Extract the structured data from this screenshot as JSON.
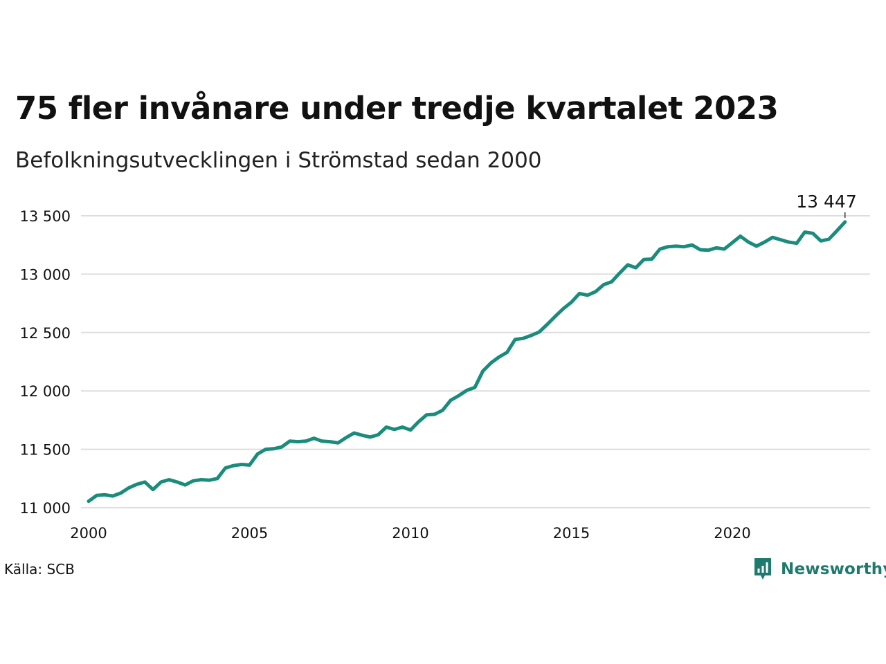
{
  "header": {
    "title": "75 fler invånare under tredje kvartalet 2023",
    "subtitle": "Befolkningsutvecklingen i Strömstad sedan 2000"
  },
  "footer": {
    "source": "Källa: SCB",
    "brand": "Newsworthy"
  },
  "colors": {
    "line": "#1a8c7c",
    "grid": "#dddddd",
    "brand": "#1f7a6e"
  },
  "icons": {
    "brand_logo": "bar-chart-speech-bubble-icon"
  },
  "chart_data": {
    "type": "line",
    "title": "75 fler invånare under tredje kvartalet 2023",
    "subtitle": "Befolkningsutvecklingen i Strömstad sedan 2000",
    "xlabel": "",
    "ylabel": "",
    "xlim": [
      2000,
      2024.5
    ],
    "ylim": [
      11000,
      13500
    ],
    "x_ticks": [
      2000,
      2005,
      2010,
      2015,
      2020
    ],
    "x_tick_labels": [
      "2000",
      "2005",
      "2010",
      "2015",
      "2020"
    ],
    "y_ticks": [
      11000,
      11500,
      12000,
      12500,
      13000,
      13500
    ],
    "y_tick_labels": [
      "11 000",
      "11 500",
      "12 000",
      "12 500",
      "13 000",
      "13 500"
    ],
    "grid": true,
    "annotation": {
      "x": 2023.5,
      "y": 13447,
      "label": "13 447"
    },
    "series": [
      {
        "x": [
          2000.0,
          2000.25,
          2000.5,
          2000.75,
          2001.0,
          2001.25,
          2001.5,
          2001.75,
          2002.0,
          2002.25,
          2002.5,
          2002.75,
          2003.0,
          2003.25,
          2003.5,
          2003.75,
          2004.0,
          2004.25,
          2004.5,
          2004.75,
          2005.0,
          2005.25,
          2005.5,
          2005.75,
          2006.0,
          2006.25,
          2006.5,
          2006.75,
          2007.0,
          2007.25,
          2007.5,
          2007.75,
          2008.0,
          2008.25,
          2008.5,
          2008.75,
          2009.0,
          2009.25,
          2009.5,
          2009.75,
          2010.0,
          2010.25,
          2010.5,
          2010.75,
          2011.0,
          2011.25,
          2011.5,
          2011.75,
          2012.0,
          2012.25,
          2012.5,
          2012.75,
          2013.0,
          2013.25,
          2013.5,
          2013.75,
          2014.0,
          2014.25,
          2014.5,
          2014.75,
          2015.0,
          2015.25,
          2015.5,
          2015.75,
          2016.0,
          2016.25,
          2016.5,
          2016.75,
          2017.0,
          2017.25,
          2017.5,
          2017.75,
          2018.0,
          2018.25,
          2018.5,
          2018.75,
          2019.0,
          2019.25,
          2019.5,
          2019.75,
          2020.0,
          2020.25,
          2020.5,
          2020.75,
          2021.0,
          2021.25,
          2021.5,
          2021.75,
          2022.0,
          2022.25,
          2022.5,
          2022.75,
          2023.0,
          2023.25,
          2023.5
        ],
        "values": [
          11055,
          11105,
          11110,
          11100,
          11125,
          11170,
          11200,
          11220,
          11155,
          11220,
          11240,
          11220,
          11195,
          11230,
          11240,
          11235,
          11250,
          11340,
          11360,
          11370,
          11365,
          11460,
          11500,
          11505,
          11520,
          11570,
          11565,
          11570,
          11595,
          11570,
          11565,
          11555,
          11600,
          11640,
          11620,
          11605,
          11625,
          11690,
          11670,
          11690,
          11665,
          11735,
          11795,
          11800,
          11835,
          11920,
          11960,
          12005,
          12030,
          12170,
          12240,
          12290,
          12330,
          12440,
          12450,
          12475,
          12505,
          12570,
          12640,
          12705,
          12760,
          12835,
          12820,
          12850,
          12910,
          12935,
          13010,
          13080,
          13055,
          13125,
          13130,
          13215,
          13235,
          13240,
          13235,
          13250,
          13210,
          13205,
          13225,
          13215,
          13270,
          13325,
          13275,
          13240,
          13275,
          13315,
          13295,
          13275,
          13265,
          13360,
          13350,
          13285,
          13300,
          13372,
          13447
        ]
      }
    ]
  }
}
